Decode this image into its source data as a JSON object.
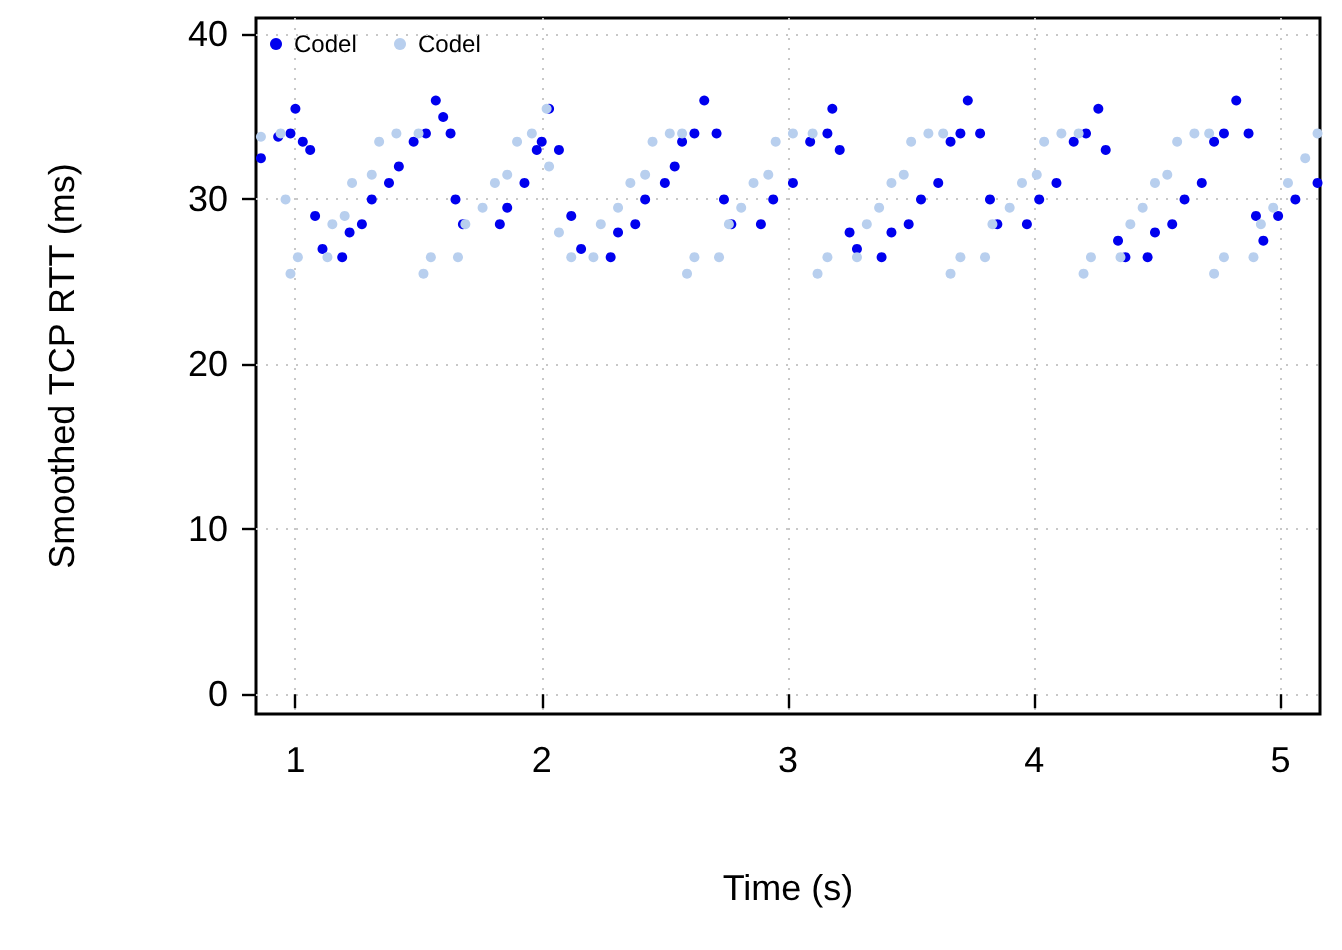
{
  "chart_data": {
    "type": "scatter",
    "xlabel": "Time (s)",
    "ylabel": "Smoothed TCP RTT (ms)",
    "xlim": [
      0.84,
      5.16
    ],
    "ylim": [
      -1.2,
      41
    ],
    "xticks": [
      1,
      2,
      3,
      4,
      5
    ],
    "yticks": [
      0,
      10,
      20,
      30,
      40
    ],
    "grid": true,
    "legend": "top left",
    "marker": "circle",
    "series": [
      {
        "name": "Codel",
        "color": "#0000ee",
        "x": [
          0.86,
          0.93,
          0.98,
          1.0,
          1.03,
          1.06,
          1.08,
          1.11,
          1.19,
          1.22,
          1.27,
          1.31,
          1.38,
          1.42,
          1.48,
          1.53,
          1.57,
          1.6,
          1.63,
          1.65,
          1.68,
          1.83,
          1.86,
          1.93,
          1.98,
          2.0,
          2.03,
          2.07,
          2.12,
          2.16,
          2.28,
          2.31,
          2.38,
          2.42,
          2.5,
          2.54,
          2.57,
          2.62,
          2.66,
          2.71,
          2.74,
          2.77,
          2.89,
          2.94,
          3.02,
          3.09,
          3.16,
          3.18,
          3.21,
          3.25,
          3.28,
          3.38,
          3.42,
          3.49,
          3.54,
          3.61,
          3.66,
          3.7,
          3.73,
          3.78,
          3.82,
          3.85,
          3.97,
          4.02,
          4.09,
          4.16,
          4.21,
          4.26,
          4.29,
          4.34,
          4.37,
          4.46,
          4.49,
          4.56,
          4.61,
          4.68,
          4.73,
          4.77,
          4.82,
          4.87,
          4.9,
          4.93,
          4.99,
          5.06,
          5.15
        ],
        "values": [
          32.5,
          33.8,
          34,
          35.5,
          33.5,
          33,
          29,
          27,
          26.5,
          28,
          28.5,
          30,
          31,
          32,
          33.5,
          34,
          36,
          35,
          34,
          30,
          28.5,
          28.5,
          29.5,
          31,
          33,
          33.5,
          35.5,
          33,
          29,
          27,
          26.5,
          28,
          28.5,
          30,
          31,
          32,
          33.5,
          34,
          36,
          34,
          30,
          28.5,
          28.5,
          30,
          31,
          33.5,
          34,
          35.5,
          33,
          28,
          27,
          26.5,
          28,
          28.5,
          30,
          31,
          33.5,
          34,
          36,
          34,
          30,
          28.5,
          28.5,
          30,
          31,
          33.5,
          34,
          35.5,
          33,
          27.5,
          26.5,
          26.5,
          28,
          28.5,
          30,
          31,
          33.5,
          34,
          36,
          34,
          29,
          27.5,
          29,
          30,
          31
        ]
      },
      {
        "name": "Codel",
        "color": "#b8cfee",
        "x": [
          0.86,
          0.94,
          0.96,
          0.98,
          1.01,
          1.13,
          1.15,
          1.2,
          1.23,
          1.31,
          1.34,
          1.41,
          1.5,
          1.52,
          1.55,
          1.66,
          1.69,
          1.76,
          1.81,
          1.86,
          1.9,
          1.96,
          2.02,
          2.03,
          2.07,
          2.12,
          2.21,
          2.24,
          2.31,
          2.36,
          2.42,
          2.45,
          2.52,
          2.57,
          2.59,
          2.62,
          2.72,
          2.76,
          2.81,
          2.86,
          2.92,
          2.95,
          3.02,
          3.1,
          3.12,
          3.16,
          3.28,
          3.32,
          3.37,
          3.42,
          3.47,
          3.5,
          3.57,
          3.63,
          3.66,
          3.7,
          3.8,
          3.83,
          3.9,
          3.95,
          4.01,
          4.04,
          4.11,
          4.18,
          4.2,
          4.23,
          4.35,
          4.39,
          4.44,
          4.49,
          4.54,
          4.58,
          4.65,
          4.71,
          4.73,
          4.77,
          4.89,
          4.92,
          4.97,
          5.03,
          5.1,
          5.15
        ],
        "values": [
          33.8,
          34,
          30,
          25.5,
          26.5,
          26.5,
          28.5,
          29,
          31,
          31.5,
          33.5,
          34,
          34,
          25.5,
          26.5,
          26.5,
          28.5,
          29.5,
          31,
          31.5,
          33.5,
          34,
          35.5,
          32,
          28,
          26.5,
          26.5,
          28.5,
          29.5,
          31,
          31.5,
          33.5,
          34,
          34,
          25.5,
          26.5,
          26.5,
          28.5,
          29.5,
          31,
          31.5,
          33.5,
          34,
          34,
          25.5,
          26.5,
          26.5,
          28.5,
          29.5,
          31,
          31.5,
          33.5,
          34,
          34,
          25.5,
          26.5,
          26.5,
          28.5,
          29.5,
          31,
          31.5,
          33.5,
          34,
          34,
          25.5,
          26.5,
          26.5,
          28.5,
          29.5,
          31,
          31.5,
          33.5,
          34,
          34,
          25.5,
          26.5,
          26.5,
          28.5,
          29.5,
          31,
          32.5,
          34
        ]
      }
    ]
  }
}
